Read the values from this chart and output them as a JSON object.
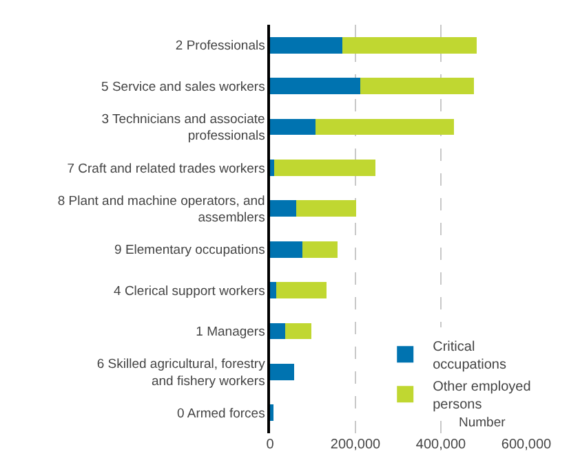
{
  "chart_data": {
    "type": "bar",
    "orientation": "horizontal",
    "stacked": true,
    "xlabel": "Number",
    "categories": [
      "2 Professionals",
      "5 Service and sales workers",
      "3 Technicians and associate professionals",
      "7 Craft and related trades workers",
      "8 Plant and machine operators, and assemblers",
      "9 Elementary occupations",
      "4 Clerical support workers",
      "1 Managers",
      "6 Skilled agricultural, forestry and fishery workers",
      "0 Armed forces"
    ],
    "series": [
      {
        "name": "Critical occupations",
        "color": "#0073b0",
        "values": [
          170000,
          211000,
          107000,
          9000,
          62000,
          75000,
          15000,
          36000,
          56000,
          8000
        ]
      },
      {
        "name": "Other employed persons",
        "color": "#c0d731",
        "values": [
          314000,
          267000,
          323000,
          237000,
          140000,
          83000,
          117000,
          61000,
          0,
          0
        ]
      }
    ],
    "xlim": [
      0,
      600000
    ],
    "xticks": [
      0,
      {
        "value": 200000,
        "label": "200,000"
      },
      {
        "value": 400000,
        "label": "400,000"
      },
      {
        "value": 600000,
        "label": "600,000"
      }
    ],
    "grid": "x",
    "legend": "bottom right"
  }
}
